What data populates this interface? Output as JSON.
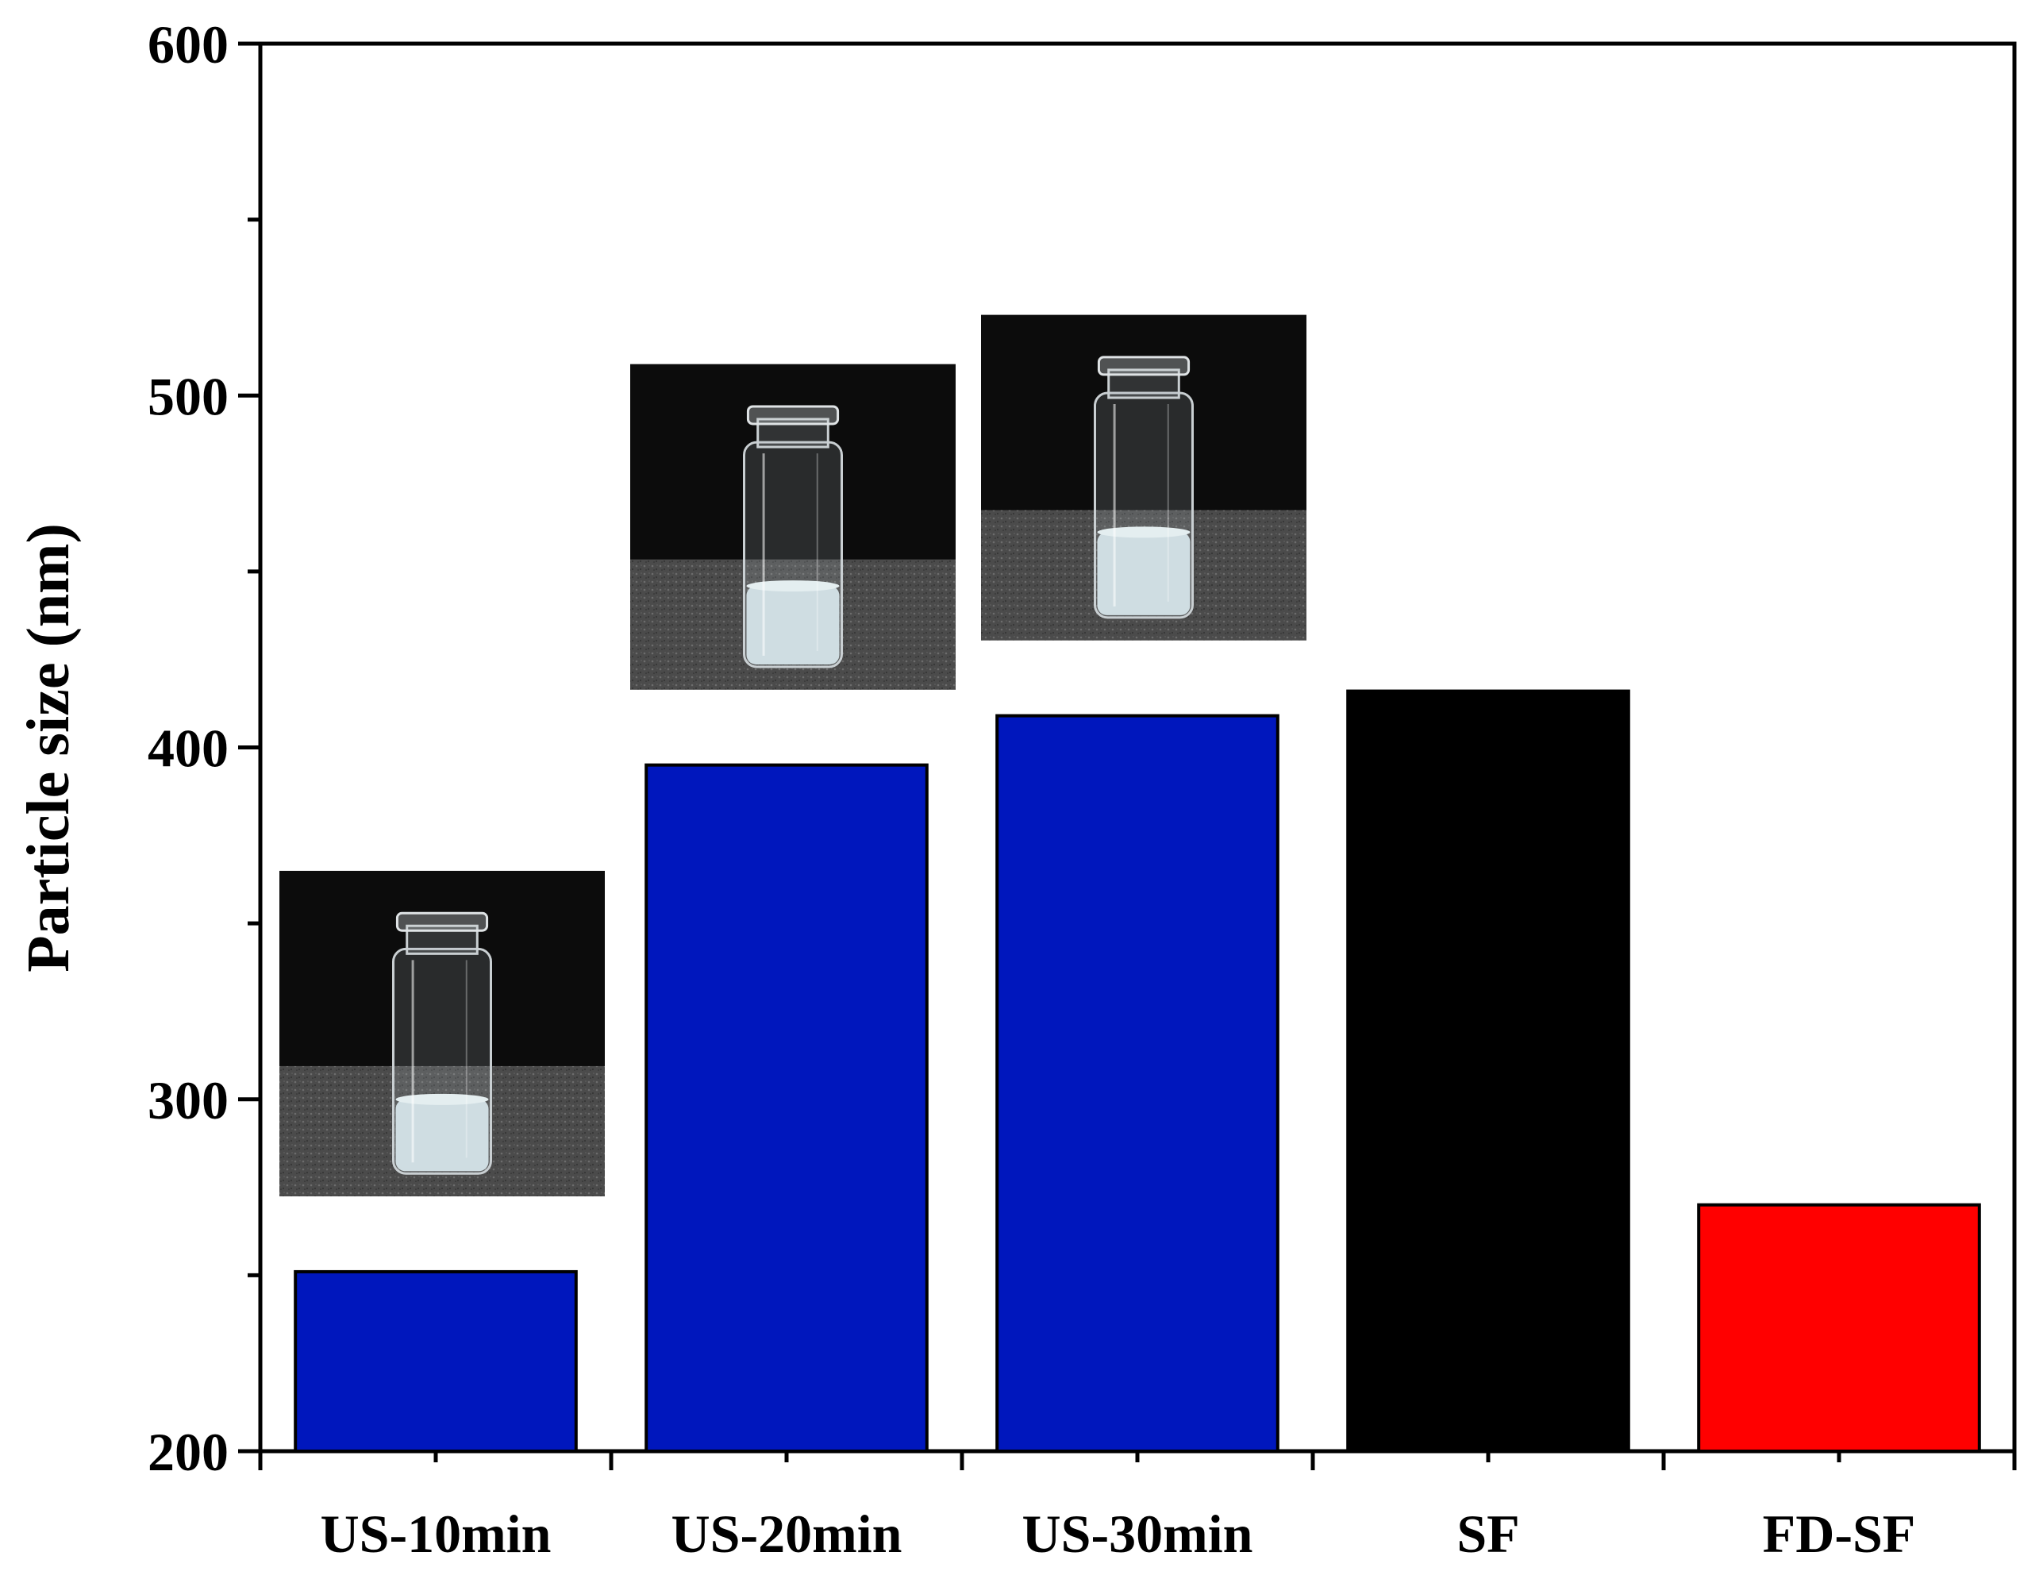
{
  "chart_data": {
    "type": "bar",
    "title": "",
    "xlabel": "",
    "ylabel": "Particle size (nm)",
    "ylim": [
      200,
      600
    ],
    "yticks": [
      200,
      300,
      400,
      500,
      600
    ],
    "categories": [
      "US-10min",
      "US-20min",
      "US-30min",
      "SF",
      "FD-SF"
    ],
    "values": [
      251,
      395,
      409,
      416,
      270
    ],
    "colors": [
      "#0017BD",
      "#0017BD",
      "#0017BD",
      "#000000",
      "#FF0000"
    ],
    "grid": false,
    "inset_photos": [
      {
        "category": "US-10min",
        "subject": "vial-photo",
        "liquid_fraction": 0.33
      },
      {
        "category": "US-20min",
        "subject": "vial-photo",
        "liquid_fraction": 0.36
      },
      {
        "category": "US-30min",
        "subject": "vial-photo",
        "liquid_fraction": 0.38
      }
    ]
  }
}
